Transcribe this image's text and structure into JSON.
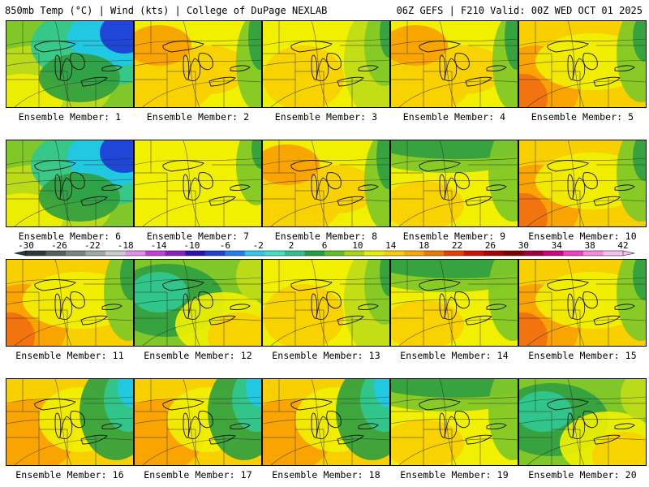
{
  "header": {
    "left": "850mb Temp (°C) | Wind (kts) | College of DuPage NEXLAB",
    "right": "06Z GEFS | F210 Valid: 00Z WED OCT 01 2025"
  },
  "members": [
    {
      "label": "Ensemble Member: 1",
      "scheme": "cold"
    },
    {
      "label": "Ensemble Member: 2",
      "scheme": "warm"
    },
    {
      "label": "Ensemble Member: 3",
      "scheme": "warm-green-east"
    },
    {
      "label": "Ensemble Member: 4",
      "scheme": "warm"
    },
    {
      "label": "Ensemble Member: 5",
      "scheme": "hot-west"
    },
    {
      "label": "Ensemble Member: 6",
      "scheme": "cold"
    },
    {
      "label": "Ensemble Member: 7",
      "scheme": "yellow"
    },
    {
      "label": "Ensemble Member: 8",
      "scheme": "warm"
    },
    {
      "label": "Ensemble Member: 9",
      "scheme": "green-north"
    },
    {
      "label": "Ensemble Member: 10",
      "scheme": "hot-west"
    },
    {
      "label": "Ensemble Member: 11",
      "scheme": "hot-west"
    },
    {
      "label": "Ensemble Member: 12",
      "scheme": "green-center"
    },
    {
      "label": "Ensemble Member: 13",
      "scheme": "warm-green-east"
    },
    {
      "label": "Ensemble Member: 14",
      "scheme": "green-north"
    },
    {
      "label": "Ensemble Member: 15",
      "scheme": "hot-west"
    },
    {
      "label": "Ensemble Member: 16",
      "scheme": "warm-cold-east"
    },
    {
      "label": "Ensemble Member: 17",
      "scheme": "warm-cold-east"
    },
    {
      "label": "Ensemble Member: 18",
      "scheme": "warm-cold-east"
    },
    {
      "label": "Ensemble Member: 19",
      "scheme": "green-north"
    },
    {
      "label": "Ensemble Member: 20",
      "scheme": "green-center"
    }
  ],
  "colorbar": {
    "ticks": [
      "-30",
      "-26",
      "-22",
      "-18",
      "-14",
      "-10",
      "-6",
      "-2",
      "2",
      "6",
      "10",
      "14",
      "18",
      "22",
      "26",
      "30",
      "34",
      "38",
      "42"
    ],
    "colors": [
      "#2d3a3a",
      "#555f5f",
      "#7b8484",
      "#a0a8a8",
      "#c8cccc",
      "#e090e8",
      "#c040d8",
      "#8a20c0",
      "#3010b0",
      "#2040d8",
      "#2080f0",
      "#30c8f0",
      "#40e0c8",
      "#30c090",
      "#20a040",
      "#60c020",
      "#a8d810",
      "#e8f000",
      "#f8d000",
      "#f8a800",
      "#f07800",
      "#e84000",
      "#d01000",
      "#a80000",
      "#800000",
      "#a00040",
      "#d00080",
      "#f040c0",
      "#f888e0",
      "#f8c0f0"
    ],
    "colors_note": "",
    "field_palette": {
      "blue": "#1e3cd8",
      "cyan": "#20c8e8",
      "teal": "#30c890",
      "green": "#30a040",
      "lgreen": "#80c828",
      "ygreen": "#c0dc18",
      "yellow": "#f0f000",
      "gold": "#f8d000",
      "orange": "#f8a000",
      "dorange": "#f07010"
    }
  }
}
